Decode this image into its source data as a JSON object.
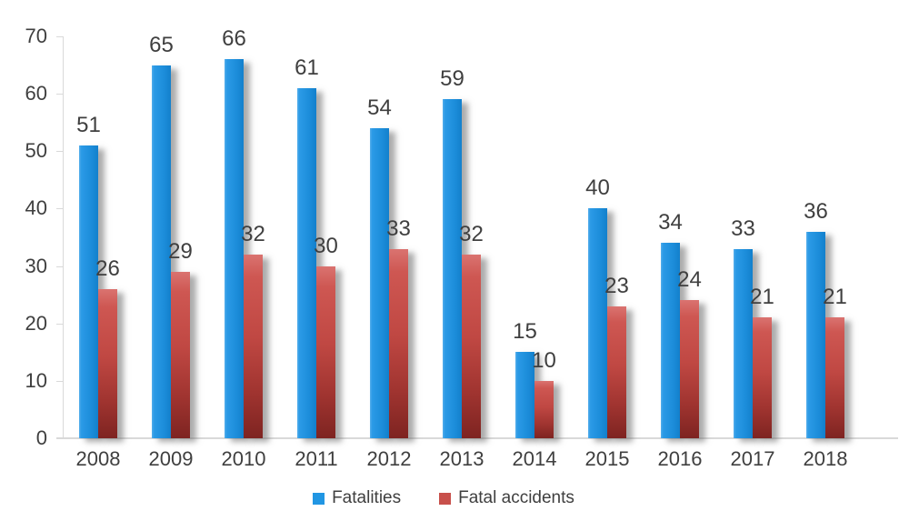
{
  "chart_data": {
    "type": "bar",
    "title": "",
    "xlabel": "",
    "ylabel": "",
    "categories": [
      "2008",
      "2009",
      "2010",
      "2011",
      "2012",
      "2013",
      "2014",
      "2015",
      "2016",
      "2017",
      "2018"
    ],
    "series": [
      {
        "name": "Fatalities",
        "color": "#2196E3",
        "values": [
          51,
          65,
          66,
          61,
          54,
          59,
          15,
          40,
          34,
          33,
          36
        ]
      },
      {
        "name": "Fatal accidents",
        "color": "#C8504B",
        "values": [
          26,
          29,
          32,
          30,
          33,
          32,
          10,
          23,
          24,
          21,
          21
        ]
      }
    ],
    "ylim": [
      0,
      70
    ],
    "yticks": [
      0,
      10,
      20,
      30,
      40,
      50,
      60,
      70
    ],
    "grid": false,
    "data_labels": "outside-end",
    "legend_position": "bottom",
    "background_color": "#FFFFFF",
    "text_color": "#3F3F3F",
    "axis_color": "#D9D9D9"
  }
}
